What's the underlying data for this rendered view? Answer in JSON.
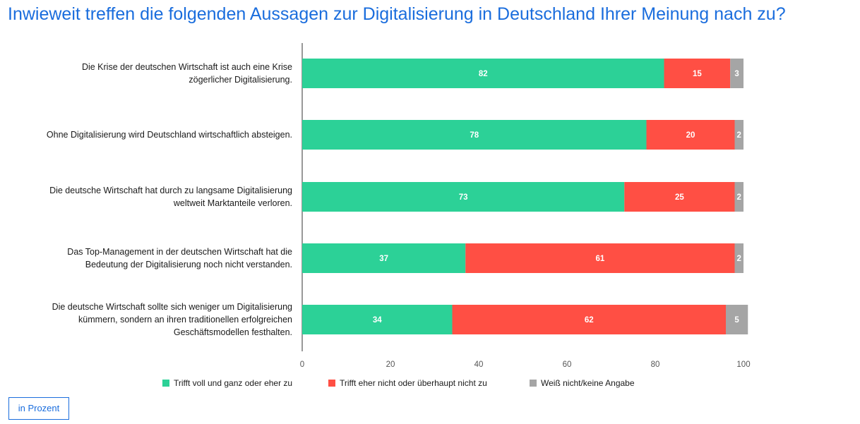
{
  "chart_data": {
    "type": "bar",
    "orientation": "horizontal",
    "stacked": true,
    "title": "Inwieweit treffen die folgenden Aussagen zur Digitalisierung in Deutschland Ihrer Meinung nach zu?",
    "categories": [
      [
        "Die Krise der deutschen Wirtschaft ist auch eine Krise",
        "zögerlicher Digitalisierung."
      ],
      [
        "Ohne Digitalisierung wird Deutschland wirtschaftlich absteigen."
      ],
      [
        "Die deutsche Wirtschaft hat durch zu langsame Digitalisierung",
        "weltweit Marktanteile verloren."
      ],
      [
        "Das Top-Management in der deutschen Wirtschaft hat die",
        "Bedeutung der Digitalisierung noch nicht verstanden."
      ],
      [
        "Die deutsche Wirtschaft sollte sich weniger um Digitalisierung",
        "kümmern, sondern an ihren traditionellen erfolgreichen",
        "Geschäftsmodellen festhalten."
      ]
    ],
    "series": [
      {
        "name": "Trifft voll und ganz oder eher zu",
        "color": "#2cd197",
        "values": [
          82,
          78,
          73,
          37,
          34
        ]
      },
      {
        "name": "Trifft eher nicht oder überhaupt nicht zu",
        "color": "#ff4f44",
        "values": [
          15,
          20,
          25,
          61,
          62
        ]
      },
      {
        "name": "Weiß nicht/keine Angabe",
        "color": "#a5a5a5",
        "values": [
          3,
          2,
          2,
          2,
          5
        ]
      }
    ],
    "xlim": [
      0,
      100
    ],
    "xticks": [
      0,
      20,
      40,
      60,
      80,
      100
    ],
    "grid": false,
    "legend_position": "bottom",
    "unit_note": "in Prozent"
  }
}
